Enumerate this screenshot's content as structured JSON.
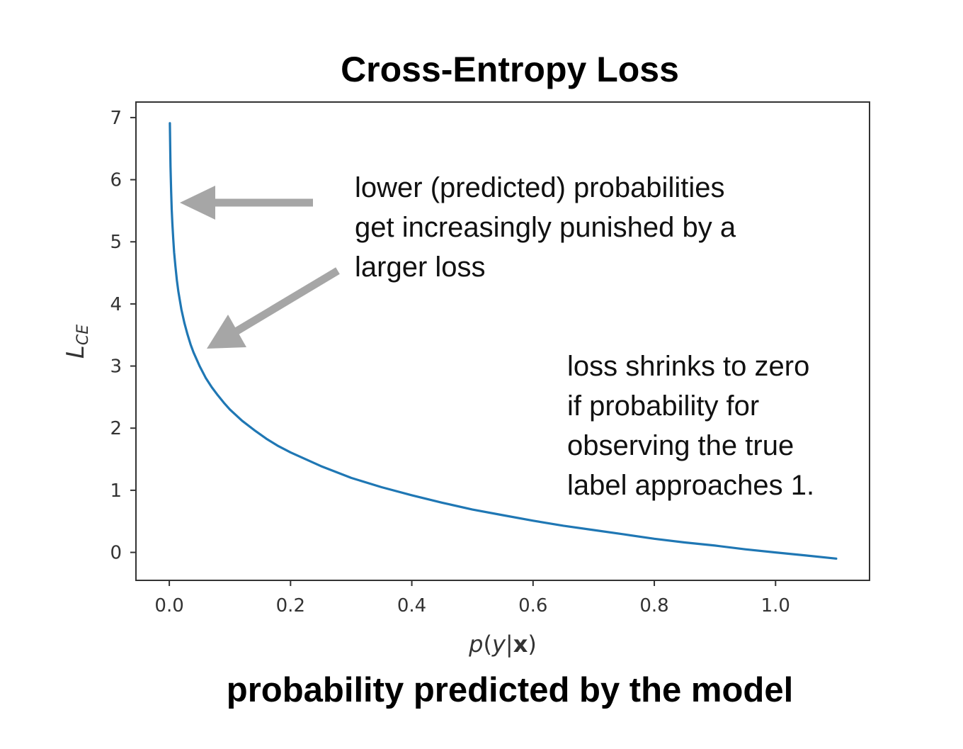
{
  "chart_data": {
    "type": "line",
    "title": "Cross-Entropy Loss",
    "caption": "probability predicted by the model",
    "xlabel": {
      "p": "p",
      "open": "(",
      "y": "y",
      "bar": "|",
      "x": "x",
      "close": ")"
    },
    "ylabel": {
      "main": "L",
      "sub": "CE"
    },
    "xlim": [
      -0.055,
      1.155
    ],
    "ylim": [
      -0.45,
      7.25
    ],
    "xticks": [
      0.0,
      0.2,
      0.4,
      0.6,
      0.8,
      1.0
    ],
    "xtick_labels": [
      "0.0",
      "0.2",
      "0.4",
      "0.6",
      "0.8",
      "1.0"
    ],
    "yticks": [
      0,
      1,
      2,
      3,
      4,
      5,
      6,
      7
    ],
    "ytick_labels": [
      "0",
      "1",
      "2",
      "3",
      "4",
      "5",
      "6",
      "7"
    ],
    "grid": false,
    "series": [
      {
        "color": "#1f77b4",
        "x": [
          0.001,
          0.0015,
          0.002,
          0.003,
          0.004,
          0.005,
          0.0065,
          0.008,
          0.01,
          0.0125,
          0.015,
          0.0175,
          0.02,
          0.025,
          0.03,
          0.035,
          0.04,
          0.05,
          0.06,
          0.07,
          0.08,
          0.09,
          0.1,
          0.12,
          0.14,
          0.16,
          0.18,
          0.2,
          0.25,
          0.3,
          0.35,
          0.4,
          0.45,
          0.5,
          0.55,
          0.6,
          0.65,
          0.7,
          0.75,
          0.8,
          0.85,
          0.9,
          0.95,
          1.0,
          1.05,
          1.1
        ],
        "y": [
          6.91,
          6.5,
          6.21,
          5.81,
          5.52,
          5.3,
          5.04,
          4.83,
          4.61,
          4.38,
          4.2,
          4.05,
          3.91,
          3.69,
          3.51,
          3.35,
          3.22,
          3.0,
          2.81,
          2.66,
          2.53,
          2.41,
          2.3,
          2.12,
          1.97,
          1.83,
          1.71,
          1.61,
          1.39,
          1.2,
          1.05,
          0.92,
          0.8,
          0.69,
          0.6,
          0.51,
          0.43,
          0.36,
          0.29,
          0.22,
          0.16,
          0.11,
          0.05,
          0.0,
          -0.05,
          -0.1
        ]
      }
    ],
    "annotations": [
      {
        "lines": [
          "lower (predicted) probabilities",
          "get increasingly punished by a",
          "larger loss"
        ]
      },
      {
        "lines": [
          "loss shrinks to zero",
          "if probability for",
          "observing the true",
          "label approaches 1."
        ]
      }
    ],
    "arrow_color": "#a6a6a6"
  }
}
